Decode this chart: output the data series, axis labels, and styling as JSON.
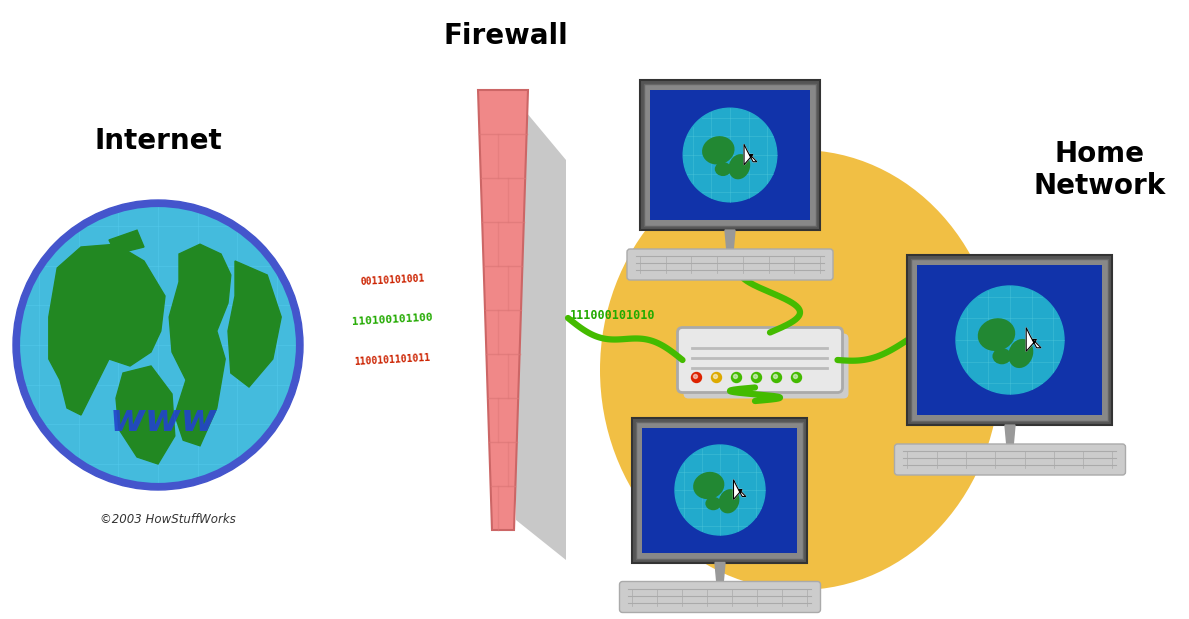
{
  "background_color": "#ffffff",
  "labels": {
    "internet": "Internet",
    "firewall": "Firewall",
    "home_network": "Home\nNetwork",
    "copyright": "©2003 HowStuffWorks"
  },
  "label_fontsize": 20,
  "label_fontweight": "bold",
  "colors": {
    "globe_outer": "#4455cc",
    "globe_water": "#44bbdd",
    "globe_water_light": "#66ccee",
    "globe_dark_green": "#228822",
    "globe_green": "#33aa33",
    "globe_grid": "#55ccee",
    "firewall_pink": "#f08888",
    "firewall_mid": "#e87070",
    "firewall_shadow": "#c8c8c8",
    "firewall_shadow2": "#aaaaaa",
    "network_yellow": "#f0b830",
    "screen_blue": "#1133aa",
    "screen_earth_blue": "#22aacc",
    "screen_earth_green": "#228833",
    "cable_green": "#44bb00",
    "data_red": "#cc2200",
    "data_green": "#22aa00",
    "router_body": "#e8e8e8",
    "router_lines": "#bbbbbb",
    "computer_frame": "#555555",
    "computer_bezel": "#888888",
    "keyboard_color": "#bbbbbb",
    "keyboard_dark": "#999999",
    "text_dark": "#000000",
    "www_blue": "#2244cc",
    "stand_color": "#aaaaaa"
  }
}
